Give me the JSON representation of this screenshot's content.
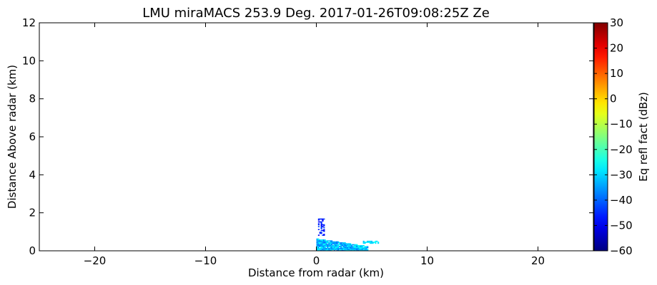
{
  "chart_data": {
    "type": "heatmap",
    "title": "LMU miraMACS 253.9 Deg. 2017-01-26T09:08:25Z  Ze",
    "xlabel": "Distance from radar (km)",
    "ylabel": "Distance Above radar  (km)",
    "xlim": [
      -25,
      25
    ],
    "ylim": [
      0,
      12
    ],
    "xticks": [
      -20,
      -10,
      0,
      10,
      20
    ],
    "yticks": [
      0,
      2,
      4,
      6,
      8,
      10,
      12
    ],
    "grid": false,
    "colorbar": {
      "label": "Eq refl fact (dBz)",
      "range": [
        -60,
        30
      ],
      "ticks": [
        -60,
        -50,
        -40,
        -30,
        -20,
        -10,
        0,
        10,
        20,
        30
      ],
      "colormap": "jet",
      "colors": [
        "#00007f",
        "#0000ff",
        "#007fff",
        "#00ffff",
        "#7fff7f",
        "#ffff00",
        "#ff7f00",
        "#ff0000",
        "#7f0000"
      ]
    },
    "echoes": [
      {
        "x0": 0.0,
        "x1": 4.6,
        "y0": 0.0,
        "y1": 0.62,
        "dbz_range": [
          -40,
          -25
        ],
        "shape": "wedge"
      },
      {
        "x0": 4.2,
        "x1": 5.6,
        "y0": 0.38,
        "y1": 0.5,
        "dbz_range": [
          -32,
          -26
        ],
        "shape": "band"
      },
      {
        "x0": 0.15,
        "x1": 0.75,
        "y0": 0.8,
        "y1": 1.7,
        "dbz_range": [
          -50,
          -42
        ],
        "shape": "column"
      }
    ]
  }
}
